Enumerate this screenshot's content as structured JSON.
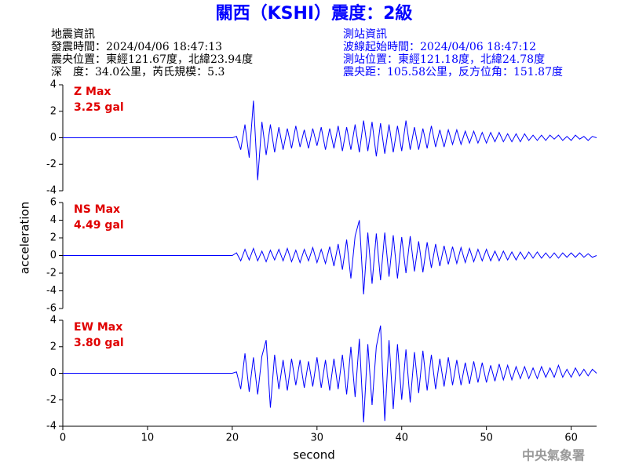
{
  "header": {
    "title": "關西（KSHI）震度：2級",
    "left": [
      "地震資訊",
      "發震時間：2024/04/06 18:47:13",
      "震央位置：東經121.67度，北緯23.94度",
      "深　度：34.0公里，芮氏規模：5.3"
    ],
    "right": [
      "測站資訊",
      "波線起始時間：2024/04/06 18:47:12",
      "測站位置：東經121.18度，北緯24.78度",
      "震央距：105.58公里，反方位角：151.87度"
    ]
  },
  "footer": "中央氣象署",
  "chart_data": [
    {
      "type": "line",
      "annotation": [
        "Z Max",
        "3.25 gal"
      ],
      "color": "#0000ff",
      "xlim": [
        0,
        63
      ],
      "ylim": [
        -4,
        4
      ],
      "yticks": [
        -4,
        -2,
        0,
        2,
        4
      ],
      "x": [
        0,
        10,
        20,
        20.5,
        21,
        21.5,
        22,
        22.5,
        23,
        23.5,
        24,
        24.5,
        25,
        25.5,
        26,
        26.5,
        27,
        27.5,
        28,
        28.5,
        29,
        29.5,
        30,
        30.5,
        31,
        31.5,
        32,
        32.5,
        33,
        33.5,
        34,
        34.5,
        35,
        35.5,
        36,
        36.5,
        37,
        37.5,
        38,
        38.5,
        39,
        39.5,
        40,
        40.5,
        41,
        41.5,
        42,
        42.5,
        43,
        43.5,
        44,
        44.5,
        45,
        45.5,
        46,
        46.5,
        47,
        47.5,
        48,
        48.5,
        49,
        49.5,
        50,
        50.5,
        51,
        51.5,
        52,
        52.5,
        53,
        53.5,
        54,
        54.5,
        55,
        55.5,
        56,
        56.5,
        57,
        57.5,
        58,
        58.5,
        59,
        59.5,
        60,
        60.5,
        61,
        61.5,
        62,
        62.5,
        63
      ],
      "values": [
        0,
        0,
        0,
        0.1,
        -0.9,
        1.0,
        -1.5,
        2.8,
        -3.2,
        1.2,
        -1.3,
        1.0,
        -1.1,
        0.8,
        -0.9,
        0.7,
        -0.8,
        0.9,
        -0.7,
        0.6,
        -0.8,
        0.7,
        -0.6,
        0.8,
        -0.9,
        0.7,
        -0.8,
        0.9,
        -1.0,
        0.8,
        -0.9,
        1.0,
        -1.1,
        1.3,
        -1.0,
        1.2,
        -1.4,
        1.1,
        -1.2,
        1.0,
        -1.1,
        0.9,
        -1.0,
        1.3,
        -0.9,
        0.8,
        -0.9,
        0.7,
        -0.8,
        0.9,
        -0.7,
        0.6,
        -0.7,
        0.6,
        -0.5,
        0.6,
        -0.5,
        0.5,
        -0.4,
        0.5,
        -0.4,
        0.4,
        -0.4,
        0.4,
        -0.3,
        0.4,
        -0.3,
        0.3,
        -0.3,
        0.3,
        -0.3,
        0.3,
        -0.2,
        0.2,
        -0.2,
        0.2,
        -0.2,
        0.2,
        -0.1,
        0.2,
        -0.2,
        0.1,
        -0.2,
        0.2,
        -0.1,
        0.1,
        -0.2,
        0.1,
        0
      ]
    },
    {
      "type": "line",
      "annotation": [
        "NS Max",
        "4.49 gal"
      ],
      "color": "#0000ff",
      "ylabel": "acceleration",
      "xlim": [
        0,
        63
      ],
      "ylim": [
        -6,
        6
      ],
      "yticks": [
        -6,
        -4,
        -2,
        0,
        2,
        4,
        6
      ],
      "x": [
        0,
        10,
        20,
        20.5,
        21,
        21.5,
        22,
        22.5,
        23,
        23.5,
        24,
        24.5,
        25,
        25.5,
        26,
        26.5,
        27,
        27.5,
        28,
        28.5,
        29,
        29.5,
        30,
        30.5,
        31,
        31.5,
        32,
        32.5,
        33,
        33.5,
        34,
        34.5,
        35,
        35.5,
        36,
        36.5,
        37,
        37.5,
        38,
        38.5,
        39,
        39.5,
        40,
        40.5,
        41,
        41.5,
        42,
        42.5,
        43,
        43.5,
        44,
        44.5,
        45,
        45.5,
        46,
        46.5,
        47,
        47.5,
        48,
        48.5,
        49,
        49.5,
        50,
        50.5,
        51,
        51.5,
        52,
        52.5,
        53,
        53.5,
        54,
        54.5,
        55,
        55.5,
        56,
        56.5,
        57,
        57.5,
        58,
        58.5,
        59,
        59.5,
        60,
        60.5,
        61,
        61.5,
        62,
        62.5,
        63
      ],
      "values": [
        0,
        0,
        0,
        0.3,
        -0.6,
        0.7,
        -0.5,
        0.8,
        -0.6,
        0.5,
        -0.7,
        0.6,
        -0.5,
        0.7,
        -0.6,
        0.8,
        -0.7,
        0.6,
        -0.8,
        0.7,
        -0.6,
        0.9,
        -0.8,
        0.7,
        -0.9,
        1.0,
        -1.2,
        1.3,
        -1.6,
        1.8,
        -2.6,
        2.2,
        4.0,
        -4.4,
        2.6,
        -3.2,
        2.5,
        -2.8,
        2.6,
        -2.4,
        2.3,
        -2.6,
        2.1,
        -2.0,
        2.2,
        -1.8,
        1.6,
        -1.9,
        1.5,
        -1.4,
        1.3,
        -1.2,
        1.1,
        -1.0,
        1.0,
        -0.9,
        0.9,
        -0.8,
        0.8,
        -0.7,
        0.7,
        -0.6,
        0.7,
        -0.6,
        0.5,
        -0.6,
        0.5,
        -0.5,
        0.4,
        -0.5,
        0.4,
        -0.4,
        0.4,
        -0.3,
        0.4,
        -0.3,
        0.3,
        -0.3,
        0.3,
        -0.3,
        0.3,
        -0.2,
        0.3,
        -0.2,
        0.3,
        -0.2,
        0.2,
        -0.2,
        0
      ]
    },
    {
      "type": "line",
      "annotation": [
        "EW Max",
        "3.80 gal"
      ],
      "color": "#0000ff",
      "xlabel": "second",
      "xlim": [
        0,
        63
      ],
      "xticks": [
        0,
        10,
        20,
        30,
        40,
        50,
        60
      ],
      "ylim": [
        -4,
        4
      ],
      "yticks": [
        -4,
        -2,
        0,
        2,
        4
      ],
      "x": [
        0,
        10,
        20,
        20.5,
        21,
        21.5,
        22,
        22.5,
        23,
        23.5,
        24,
        24.5,
        25,
        25.5,
        26,
        26.5,
        27,
        27.5,
        28,
        28.5,
        29,
        29.5,
        30,
        30.5,
        31,
        31.5,
        32,
        32.5,
        33,
        33.5,
        34,
        34.5,
        35,
        35.5,
        36,
        36.5,
        37,
        37.5,
        38,
        38.5,
        39,
        39.5,
        40,
        40.5,
        41,
        41.5,
        42,
        42.5,
        43,
        43.5,
        44,
        44.5,
        45,
        45.5,
        46,
        46.5,
        47,
        47.5,
        48,
        48.5,
        49,
        49.5,
        50,
        50.5,
        51,
        51.5,
        52,
        52.5,
        53,
        53.5,
        54,
        54.5,
        55,
        55.5,
        56,
        56.5,
        57,
        57.5,
        58,
        58.5,
        59,
        59.5,
        60,
        60.5,
        61,
        61.5,
        62,
        62.5,
        63
      ],
      "values": [
        0,
        0,
        0,
        0.1,
        -1.2,
        1.5,
        -1.4,
        1.2,
        -1.6,
        1.3,
        2.5,
        -2.6,
        1.4,
        -1.2,
        1.0,
        -1.3,
        1.1,
        -0.9,
        1.0,
        -1.1,
        0.9,
        -1.0,
        1.2,
        -1.1,
        1.0,
        -1.3,
        1.1,
        -1.2,
        1.4,
        -1.6,
        2.0,
        -1.8,
        2.6,
        -3.7,
        2.2,
        -2.4,
        2.0,
        3.6,
        -3.6,
        2.5,
        -2.7,
        2.2,
        -2.0,
        1.8,
        -2.2,
        1.6,
        -1.5,
        1.7,
        -1.3,
        1.4,
        -1.2,
        1.1,
        -1.0,
        1.2,
        -0.9,
        1.0,
        -0.9,
        0.8,
        -0.8,
        0.9,
        -0.7,
        0.8,
        -0.7,
        0.6,
        -0.6,
        0.7,
        -0.5,
        0.6,
        -0.5,
        0.5,
        -0.4,
        0.5,
        -0.4,
        0.4,
        -0.4,
        0.5,
        -0.3,
        0.4,
        -0.3,
        0.6,
        -0.3,
        0.3,
        -0.3,
        0.4,
        -0.2,
        0.3,
        -0.2,
        0.3,
        0
      ]
    }
  ]
}
